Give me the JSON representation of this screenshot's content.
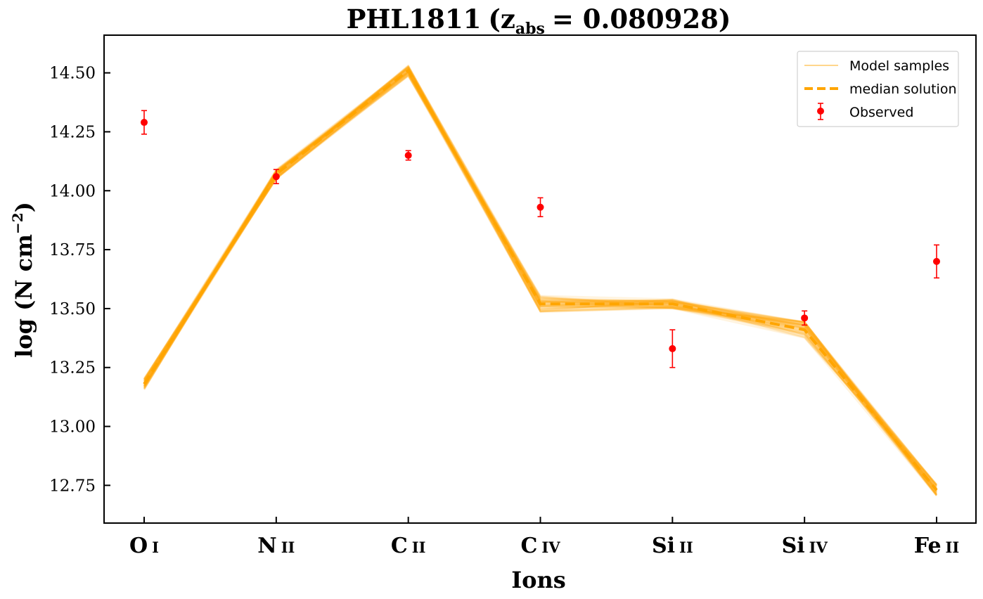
{
  "chart_data": {
    "type": "line",
    "title_main": "PHL1811",
    "title_sub_var": "z",
    "title_sub_index": "abs",
    "title_value": "= 0.080928",
    "xlabel": "Ions",
    "ylabel_main": "log (N cm",
    "ylabel_sup": "−2",
    "ylabel_close": ")",
    "categories": [
      {
        "el": "O",
        "stage": "I"
      },
      {
        "el": "N",
        "stage": "II"
      },
      {
        "el": "C",
        "stage": "II"
      },
      {
        "el": "C",
        "stage": "IV"
      },
      {
        "el": "Si",
        "stage": "II"
      },
      {
        "el": "Si",
        "stage": "IV"
      },
      {
        "el": "Fe",
        "stage": "II"
      }
    ],
    "ylim": [
      12.59,
      14.66
    ],
    "yticks": [
      "12.75",
      "13.00",
      "13.25",
      "13.50",
      "13.75",
      "14.00",
      "14.25",
      "14.50"
    ],
    "legend": {
      "position": "upper right",
      "entries": [
        "Model samples",
        "median solution",
        "Observed"
      ]
    },
    "median": [
      13.18,
      14.07,
      14.51,
      13.52,
      13.52,
      13.41,
      12.73
    ],
    "observed": {
      "values": [
        14.29,
        14.06,
        14.15,
        13.93,
        13.33,
        13.46,
        13.7
      ],
      "err": [
        0.05,
        0.03,
        0.02,
        0.04,
        0.08,
        0.03,
        0.07
      ]
    },
    "colors": {
      "model": "#ffa500",
      "median": "#ffa500",
      "observed": "#ff0000",
      "axis": "#000000"
    }
  }
}
